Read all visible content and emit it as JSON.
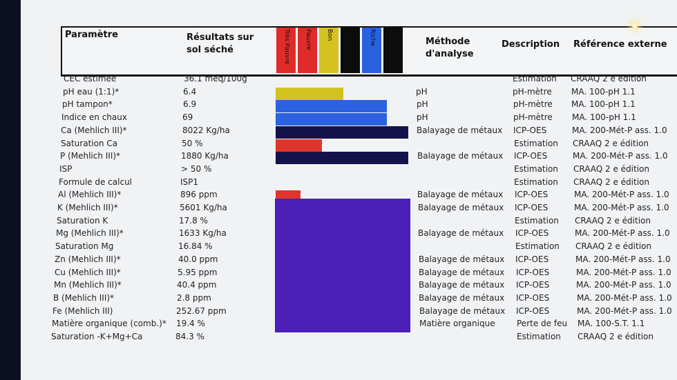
{
  "header": {
    "parametre": "Paramètre",
    "resultats_line1": "Résultats sur",
    "resultats_line2": "sol séché",
    "methode_line1": "Méthode",
    "methode_line2": "d'analyse",
    "description": "Description",
    "reference": "Référence externe"
  },
  "scale": [
    {
      "label": "Très Pauvre",
      "color": "#e02b2b"
    },
    {
      "label": "Pauvre",
      "color": "#e02b2b"
    },
    {
      "label": "Bon",
      "color": "#d4c31e"
    },
    {
      "label": "",
      "color": "#0c0c0c"
    },
    {
      "label": "Riche",
      "color": "#2a61e0"
    },
    {
      "label": "",
      "color": "#0c0c0c"
    }
  ],
  "rows": [
    {
      "param": "CEC estimée",
      "result": "36.1  meq/100g",
      "method": "",
      "description": "Estimation",
      "reference": "CRAAQ 2 e édition"
    },
    {
      "param": "pH eau (1:1)*",
      "result": "6.4",
      "method": "pH",
      "description": "pH-mètre",
      "reference": "MA. 100-pH 1.1"
    },
    {
      "param": "pH tampon*",
      "result": "6.9",
      "method": "pH",
      "description": "pH-mètre",
      "reference": "MA. 100-pH 1.1"
    },
    {
      "param": "Indice en chaux",
      "result": "69",
      "method": "pH",
      "description": "pH-mètre",
      "reference": "MA. 100-pH 1.1"
    },
    {
      "param": "Ca (Mehlich III)*",
      "result": "8022  Kg/ha",
      "method": "Balayage de métaux",
      "description": "ICP-OES",
      "reference": "MA. 200-Mét-P ass. 1.0"
    },
    {
      "param": "Saturation Ca",
      "result": "50  %",
      "method": "",
      "description": "Estimation",
      "reference": "CRAAQ 2 e édition"
    },
    {
      "param": "P (Mehlich III)*",
      "result": "1880  Kg/ha",
      "method": "Balayage de métaux",
      "description": "ICP-OES",
      "reference": "MA. 200-Mét-P ass. 1.0"
    },
    {
      "param": "ISP",
      "result": "> 50  %",
      "method": "",
      "description": "Estimation",
      "reference": "CRAAQ 2 e édition"
    },
    {
      "param": "Formule de calcul",
      "result": "ISP1",
      "method": "",
      "description": "Estimation",
      "reference": "CRAAQ 2 e édition"
    },
    {
      "param": "Al (Mehlich III)*",
      "result": "896  ppm",
      "method": "Balayage de métaux",
      "description": "ICP-OES",
      "reference": "MA. 200-Mét-P ass. 1.0"
    },
    {
      "param": "K (Mehlich III)*",
      "result": "5601  Kg/ha",
      "method": "Balayage de métaux",
      "description": "ICP-OES",
      "reference": "MA. 200-Mét-P ass. 1.0"
    },
    {
      "param": "Saturation K",
      "result": "17.8  %",
      "method": "",
      "description": "Estimation",
      "reference": "CRAAQ 2 e édition"
    },
    {
      "param": "Mg (Mehlich III)*",
      "result": "1633  Kg/ha",
      "method": "Balayage de métaux",
      "description": "ICP-OES",
      "reference": "MA. 200-Mét-P ass. 1.0"
    },
    {
      "param": "Saturation Mg",
      "result": "16.84  %",
      "method": "",
      "description": "Estimation",
      "reference": "CRAAQ 2 e édition"
    },
    {
      "param": "Zn (Mehlich III)*",
      "result": "40.0  ppm",
      "method": "Balayage de métaux",
      "description": "ICP-OES",
      "reference": "MA. 200-Mét-P ass. 1.0"
    },
    {
      "param": "Cu (Mehlich III)*",
      "result": "5.95  ppm",
      "method": "Balayage de métaux",
      "description": "ICP-OES",
      "reference": "MA. 200-Mét-P ass. 1.0"
    },
    {
      "param": "Mn (Mehlich III)*",
      "result": "40.4  ppm",
      "method": "Balayage de métaux",
      "description": "ICP-OES",
      "reference": "MA. 200-Mét-P ass. 1.0"
    },
    {
      "param": "B (Mehlich III)*",
      "result": "2.8  ppm",
      "method": "Balayage de métaux",
      "description": "ICP-OES",
      "reference": "MA. 200-Mét-P ass. 1.0"
    },
    {
      "param": "Fe (Mehlich III)",
      "result": "252.67  ppm",
      "method": "Balayage de métaux",
      "description": "ICP-OES",
      "reference": "MA. 200-Mét-P ass. 1.0"
    },
    {
      "param": "Matière organique (comb.)*",
      "result": "19.4  %",
      "method": "Matière organique",
      "description": "Perte de feu",
      "reference": "MA. 100-S.T. 1.1"
    },
    {
      "param": "Saturation -K+Mg+Ca",
      "result": "84.3  %",
      "method": "",
      "description": "Estimation",
      "reference": "CRAAQ 2 e édition"
    }
  ],
  "bar_levels": [
    {
      "row": 1,
      "fraction": 0.51,
      "color": "#d2c21f"
    },
    {
      "row": 2,
      "fraction": 0.84,
      "color": "#2b62df"
    },
    {
      "row": 3,
      "fraction": 0.84,
      "color": "#2b62df"
    },
    {
      "row": 4,
      "fraction": 1.0,
      "color": "#14124a"
    },
    {
      "row": 5,
      "fraction": 0.35,
      "color": "#e0352b"
    },
    {
      "row": 6,
      "fraction": 1.0,
      "color": "#14124a"
    },
    {
      "row": 9,
      "fraction": 0.19,
      "color": "#e0352b"
    }
  ],
  "colors": {
    "screen_bg": "#f1f2f4",
    "bezel": "#0d1020",
    "purple_block": "#4b1fb8"
  }
}
